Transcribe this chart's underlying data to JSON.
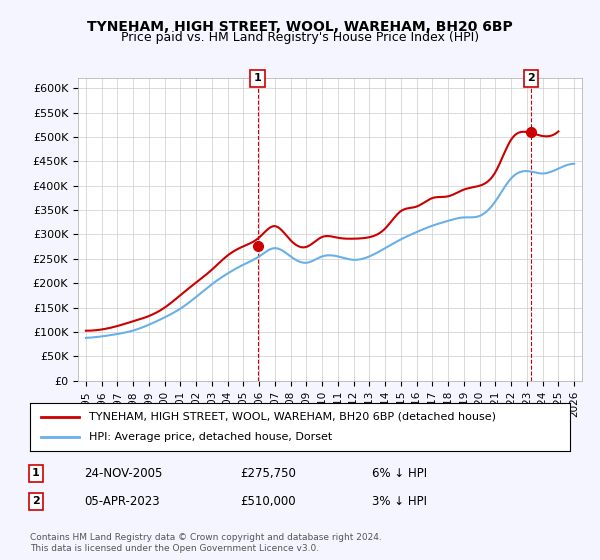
{
  "title": "TYNEHAM, HIGH STREET, WOOL, WAREHAM, BH20 6BP",
  "subtitle": "Price paid vs. HM Land Registry's House Price Index (HPI)",
  "legend_line1": "TYNEHAM, HIGH STREET, WOOL, WAREHAM, BH20 6BP (detached house)",
  "legend_line2": "HPI: Average price, detached house, Dorset",
  "note1_num": "1",
  "note1_date": "24-NOV-2005",
  "note1_price": "£275,750",
  "note1_hpi": "6% ↓ HPI",
  "note2_num": "2",
  "note2_date": "05-APR-2023",
  "note2_price": "£510,000",
  "note2_hpi": "3% ↓ HPI",
  "footer": "Contains HM Land Registry data © Crown copyright and database right 2024.\nThis data is licensed under the Open Government Licence v3.0.",
  "sale1_year": 2005.9,
  "sale1_value": 275750,
  "sale2_year": 2023.27,
  "sale2_value": 510000,
  "hpi_color": "#6ab0e8",
  "price_color": "#cc0000",
  "ylim_min": 0,
  "ylim_max": 620000,
  "yticks": [
    0,
    50000,
    100000,
    150000,
    200000,
    250000,
    300000,
    350000,
    400000,
    450000,
    500000,
    550000,
    600000
  ],
  "ytick_labels": [
    "£0",
    "£50K",
    "£100K",
    "£150K",
    "£200K",
    "£250K",
    "£300K",
    "£350K",
    "£400K",
    "£450K",
    "£500K",
    "£550K",
    "£600K"
  ],
  "xlim_min": 1994.5,
  "xlim_max": 2026.5,
  "xticks": [
    1995,
    1996,
    1997,
    1998,
    1999,
    2000,
    2001,
    2002,
    2003,
    2004,
    2005,
    2006,
    2007,
    2008,
    2009,
    2010,
    2011,
    2012,
    2013,
    2014,
    2015,
    2016,
    2017,
    2018,
    2019,
    2020,
    2021,
    2022,
    2023,
    2024,
    2025,
    2026
  ],
  "bg_color": "#f5f5ff",
  "plot_bg": "#ffffff"
}
